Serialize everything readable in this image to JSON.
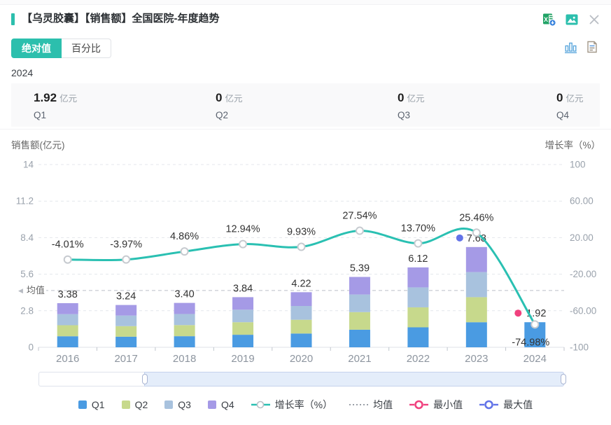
{
  "header": {
    "title": "【乌灵胶囊】【销售额】全国医院-年度趋势",
    "icons": [
      "excel-export-icon",
      "image-download-icon",
      "close-icon"
    ]
  },
  "tabs": {
    "absolute": "绝对值",
    "percentage": "百分比"
  },
  "view_icons": [
    "bar-chart-view-icon",
    "report-view-icon"
  ],
  "year_label": "2024",
  "summary": {
    "unit": "亿元",
    "cards": [
      {
        "value": "1.92",
        "unit": "亿元",
        "label": "Q1"
      },
      {
        "value": "0",
        "unit": "亿元",
        "label": "Q2"
      },
      {
        "value": "0",
        "unit": "亿元",
        "label": "Q3"
      },
      {
        "value": "0",
        "unit": "亿元",
        "label": "Q4"
      }
    ]
  },
  "axes": {
    "left_title": "销售额(亿元)",
    "right_title": "增长率（%）"
  },
  "chart_data": {
    "type": "bar",
    "subtype": "stacked-bar-with-line",
    "categories": [
      "2016",
      "2017",
      "2018",
      "2019",
      "2020",
      "2021",
      "2022",
      "2023",
      "2024"
    ],
    "series": [
      {
        "name": "Q1",
        "color": "#4a9be2",
        "values": [
          0.845,
          0.81,
          0.85,
          0.96,
          1.055,
          1.3475,
          1.53,
          1.92,
          1.92
        ]
      },
      {
        "name": "Q2",
        "color": "#c7d98c",
        "values": [
          0.845,
          0.81,
          0.85,
          0.96,
          1.055,
          1.3475,
          1.53,
          1.92,
          0
        ]
      },
      {
        "name": "Q3",
        "color": "#a8c2de",
        "values": [
          0.845,
          0.81,
          0.85,
          0.96,
          1.055,
          1.3475,
          1.53,
          1.92,
          0
        ]
      },
      {
        "name": "Q4",
        "color": "#a59ae6",
        "values": [
          0.845,
          0.81,
          0.85,
          0.96,
          1.055,
          1.3475,
          1.53,
          1.92,
          0
        ]
      }
    ],
    "totals": [
      "3.38",
      "3.24",
      "3.40",
      "3.84",
      "4.22",
      "5.39",
      "6.12",
      "7.68",
      "1.92"
    ],
    "line": {
      "name": "增长率（%）",
      "color": "#2ac0b2",
      "values": [
        -4.01,
        -3.97,
        4.86,
        12.94,
        9.93,
        27.54,
        13.7,
        25.46,
        -74.98
      ],
      "labels": [
        "-4.01%",
        "-3.97%",
        "4.86%",
        "12.94%",
        "9.93%",
        "27.54%",
        "13.70%",
        "25.46%",
        "-74.98%"
      ]
    },
    "mean": {
      "label": "均值",
      "value": 4.35
    },
    "min_marker": {
      "label": "最小值",
      "category": "2024",
      "value": 1.92,
      "color": "#f0417e"
    },
    "max_marker": {
      "label": "最大值",
      "category": "2023",
      "value": 7.68,
      "color": "#6273e8"
    },
    "left_axis": {
      "title": "销售额(亿元)",
      "ticks": [
        "14",
        "11.2",
        "8.4",
        "5.6",
        "2.8",
        "0"
      ],
      "max": 14,
      "min": 0
    },
    "right_axis": {
      "title": "增长率（%）",
      "ticks": [
        "100",
        "60.00",
        "20.00",
        "-20.00",
        "-60.00",
        "-100"
      ],
      "max": 100,
      "min": -100
    },
    "grid": "horizontal-dashed",
    "legend_position": "bottom"
  },
  "legend": {
    "items": [
      {
        "label": "Q1",
        "type": "square",
        "color": "#4a9be2"
      },
      {
        "label": "Q2",
        "type": "square",
        "color": "#c7d98c"
      },
      {
        "label": "Q3",
        "type": "square",
        "color": "#a8c2de"
      },
      {
        "label": "Q4",
        "type": "square",
        "color": "#a59ae6"
      },
      {
        "label": "增长率（%）",
        "type": "line",
        "color": "#2ac0b2"
      },
      {
        "label": "均值",
        "type": "dashed",
        "color": "#9aa0a8"
      },
      {
        "label": "最小值",
        "type": "ring",
        "color": "#f0417e"
      },
      {
        "label": "最大值",
        "type": "ring",
        "color": "#6273e8"
      }
    ]
  },
  "colors": {
    "accent_teal": "#2cbfad",
    "grid_line": "#e4e7ec",
    "axis_line": "#dfe2e7",
    "tick_text": "#9aa2ac",
    "x_label_text": "#8d959f",
    "value_text": "#333333",
    "mean_line": "#c9ccd3"
  }
}
